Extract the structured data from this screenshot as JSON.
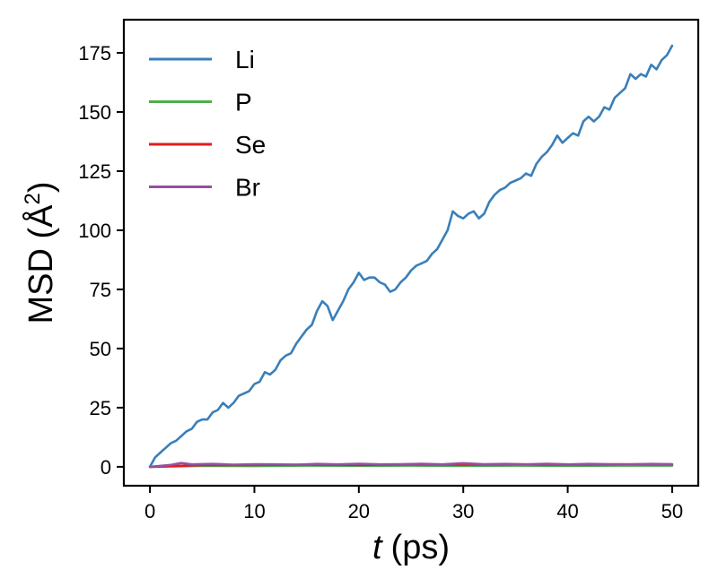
{
  "chart_data": {
    "type": "line",
    "title": "",
    "xlabel": "t",
    "xlabel_unit": "(ps)",
    "ylabel": "MSD (Å",
    "ylabel_exp": "2",
    "ylabel_close": ")",
    "xlim": [
      -2.5,
      52.5
    ],
    "ylim": [
      -8,
      189
    ],
    "xticks": [
      0,
      10,
      20,
      30,
      40,
      50
    ],
    "yticks": [
      0,
      25,
      50,
      75,
      100,
      125,
      150,
      175
    ],
    "x_tick_labels": [
      "0",
      "10",
      "20",
      "30",
      "40",
      "50"
    ],
    "y_tick_labels": [
      "0",
      "25",
      "50",
      "75",
      "100",
      "125",
      "150",
      "175"
    ],
    "grid": false,
    "legend": "top-left",
    "colors": {
      "Li": "#3a7fba",
      "P": "#4daf4a",
      "Se": "#e41a1c",
      "Br": "#984ea3"
    },
    "series": [
      {
        "name": "Li",
        "x": [
          0,
          0.5,
          1,
          1.5,
          2,
          2.5,
          3,
          3.5,
          4,
          4.5,
          5,
          5.5,
          6,
          6.5,
          7,
          7.5,
          8,
          8.5,
          9,
          9.5,
          10,
          10.5,
          11,
          11.5,
          12,
          12.5,
          13,
          13.5,
          14,
          14.5,
          15,
          15.5,
          16,
          16.5,
          17,
          17.5,
          18,
          18.5,
          19,
          19.5,
          20,
          20.5,
          21,
          21.5,
          22,
          22.5,
          23,
          23.5,
          24,
          24.5,
          25,
          25.5,
          26,
          26.5,
          27,
          27.5,
          28,
          28.5,
          29,
          29.5,
          30,
          30.5,
          31,
          31.5,
          32,
          32.5,
          33,
          33.5,
          34,
          34.5,
          35,
          35.5,
          36,
          36.5,
          37,
          37.5,
          38,
          38.5,
          39,
          39.5,
          40,
          40.5,
          41,
          41.5,
          42,
          42.5,
          43,
          43.5,
          44,
          44.5,
          45,
          45.5,
          46,
          46.5,
          47,
          47.5,
          48,
          48.5,
          49,
          49.5,
          50
        ],
        "values": [
          0,
          4,
          6,
          8,
          10,
          11,
          13,
          15,
          16,
          19,
          20,
          20,
          23,
          24,
          27,
          25,
          27,
          30,
          31,
          32,
          35,
          36,
          40,
          39,
          41,
          45,
          47,
          48,
          52,
          55,
          58,
          60,
          66,
          70,
          68,
          62,
          66,
          70,
          75,
          78,
          82,
          79,
          80,
          80,
          78,
          77,
          74,
          75,
          78,
          80,
          83,
          85,
          86,
          87,
          90,
          92,
          96,
          100,
          108,
          106,
          105,
          107,
          108,
          105,
          107,
          112,
          115,
          117,
          118,
          120,
          121,
          122,
          124,
          123,
          128,
          131,
          133,
          136,
          140,
          137,
          139,
          141,
          140,
          146,
          148,
          146,
          148,
          152,
          151,
          156,
          158,
          160,
          166,
          164,
          166,
          165,
          170,
          168,
          172,
          174,
          178
        ]
      },
      {
        "name": "P",
        "x": [
          0,
          5,
          10,
          15,
          20,
          25,
          30,
          35,
          40,
          45,
          50
        ],
        "values": [
          0,
          0.4,
          0.3,
          0.5,
          0.4,
          0.5,
          0.4,
          0.5,
          0.4,
          0.5,
          0.5
        ]
      },
      {
        "name": "Se",
        "x": [
          0,
          5,
          10,
          15,
          20,
          25,
          30,
          35,
          40,
          45,
          50
        ],
        "values": [
          0,
          0.7,
          0.8,
          0.9,
          0.8,
          1.0,
          0.9,
          1.0,
          0.9,
          1.0,
          1.0
        ]
      },
      {
        "name": "Br",
        "x": [
          0,
          2,
          3,
          4,
          6,
          8,
          10,
          12,
          14,
          16,
          18,
          20,
          22,
          24,
          26,
          28,
          30,
          32,
          34,
          36,
          38,
          40,
          42,
          44,
          46,
          48,
          50
        ],
        "values": [
          0,
          0.8,
          1.6,
          1.0,
          1.2,
          0.9,
          1.1,
          1.0,
          0.9,
          1.2,
          1.0,
          1.3,
          1.0,
          1.1,
          1.3,
          1.0,
          1.5,
          1.1,
          1.2,
          1.0,
          1.3,
          1.0,
          1.2,
          1.1,
          1.0,
          1.2,
          1.1
        ]
      }
    ]
  }
}
